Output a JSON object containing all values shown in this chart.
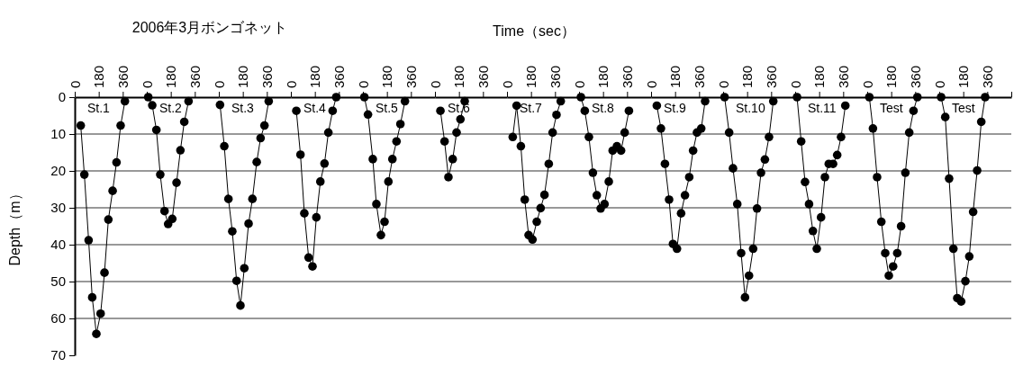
{
  "chart_data": [
    {
      "type": "line",
      "ylabel": "Depth（m）",
      "marker": "circle",
      "grid": "y",
      "xlim": [
        0,
        540
      ],
      "xticks": [
        0,
        180,
        360
      ],
      "ylim": [
        70,
        0
      ],
      "yticks": [
        0,
        10,
        20,
        30,
        40,
        50,
        60,
        70
      ],
      "x": [
        45,
        72,
        104,
        131,
        162,
        194,
        223,
        252,
        284,
        313,
        344,
        376
      ],
      "series": [
        {
          "name": "St.1",
          "color": "#000000",
          "values": [
            7.7,
            21.0,
            38.8,
            54.3,
            64.2,
            58.7,
            47.6,
            33.2,
            25.4,
            17.7,
            7.7,
            1.1
          ]
        }
      ]
    },
    {
      "type": "line",
      "title": "2006年3月ボンゴネット",
      "tick_labels": "x",
      "marker": "circle",
      "grid": "y",
      "xlim": [
        0,
        540
      ],
      "xticks": [
        0,
        180,
        360
      ],
      "ylim": [
        70,
        0
      ],
      "yticks": [
        0,
        10,
        20,
        30,
        40,
        50,
        60,
        70
      ],
      "x": [
        11,
        41,
        72,
        101,
        133,
        160,
        191,
        223,
        252,
        281,
        313
      ],
      "series": [
        {
          "name": "St.2",
          "color": "#000000",
          "values": [
            0,
            2.2,
            8.9,
            21.0,
            30.9,
            34.4,
            33.0,
            23.2,
            14.4,
            6.7,
            1.1
          ]
        }
      ]
    },
    {
      "type": "line",
      "tick_labels": "x",
      "marker": "circle",
      "grid": "y",
      "xlim": [
        0,
        540
      ],
      "xticks": [
        0,
        180,
        360
      ],
      "ylim": [
        70,
        0
      ],
      "yticks": [
        0,
        10,
        20,
        30,
        40,
        50,
        60,
        70
      ],
      "x": [
        9,
        41,
        72,
        101,
        133,
        162,
        191,
        223,
        252,
        284,
        313,
        342,
        374
      ],
      "series": [
        {
          "name": "St.3",
          "color": "#000000",
          "values": [
            2.1,
            13.3,
            27.6,
            36.4,
            49.8,
            56.5,
            46.4,
            34.3,
            27.6,
            17.6,
            11.1,
            7.7,
            1.1
          ]
        }
      ]
    },
    {
      "type": "line",
      "tick_labels": "x",
      "marker": "circle",
      "grid": "y",
      "xlim": [
        0,
        540
      ],
      "xticks": [
        0,
        180,
        360
      ],
      "ylim": [
        70,
        0
      ],
      "yticks": [
        0,
        10,
        20,
        30,
        40,
        50,
        60,
        70
      ],
      "x": [
        41,
        72,
        101,
        133,
        162,
        191,
        221,
        252,
        281,
        313,
        340
      ],
      "series": [
        {
          "name": "St.4",
          "color": "#000000",
          "values": [
            3.7,
            15.6,
            31.5,
            43.5,
            45.9,
            32.6,
            22.9,
            18.0,
            9.6,
            3.7,
            0
          ]
        }
      ]
    },
    {
      "type": "line",
      "tick_labels": "x",
      "marker": "circle",
      "grid": "y",
      "xlim": [
        0,
        540
      ],
      "xticks": [
        0,
        180,
        360
      ],
      "ylim": [
        70,
        0
      ],
      "yticks": [
        0,
        10,
        20,
        30,
        40,
        50,
        60,
        70
      ],
      "x": [
        11,
        38,
        74,
        101,
        135,
        162,
        191,
        221,
        252,
        281,
        315
      ],
      "series": [
        {
          "name": "St.5",
          "color": "#000000",
          "values": [
            0,
            4.7,
            16.8,
            29.0,
            37.4,
            33.8,
            22.9,
            16.8,
            12.0,
            7.3,
            1.1
          ]
        }
      ]
    },
    {
      "type": "line",
      "tick_labels": "x",
      "marker": "circle",
      "grid": "y",
      "xlim": [
        0,
        540
      ],
      "xticks": [
        0,
        180,
        360
      ],
      "ylim": [
        70,
        0
      ],
      "yticks": [
        0,
        10,
        20,
        30,
        40,
        50,
        60,
        70
      ],
      "x": [
        41,
        72,
        101,
        133,
        162,
        191,
        223
      ],
      "series": [
        {
          "name": "St.6",
          "color": "#000000",
          "values": [
            3.7,
            12.0,
            21.7,
            16.8,
            9.6,
            6.0,
            1.1
          ]
        }
      ]
    },
    {
      "type": "line",
      "xlabel": "Time（sec）",
      "tick_labels": "x",
      "marker": "circle",
      "grid": "y",
      "xlim": [
        0,
        540
      ],
      "xticks": [
        0,
        180,
        360
      ],
      "ylim": [
        70,
        0
      ],
      "yticks": [
        0,
        10,
        20,
        30,
        40,
        50,
        60,
        70
      ],
      "x": [
        43,
        72,
        104,
        133,
        162,
        191,
        223,
        252,
        281,
        313,
        342,
        371,
        403
      ],
      "series": [
        {
          "name": "St.7",
          "color": "#000000",
          "values": [
            10.8,
            2.3,
            13.3,
            27.8,
            37.4,
            38.6,
            33.8,
            30.1,
            26.5,
            18.1,
            9.6,
            4.8,
            1.1
          ]
        }
      ]
    },
    {
      "type": "line",
      "tick_labels": "x",
      "marker": "circle",
      "grid": "y",
      "xlim": [
        0,
        540
      ],
      "xticks": [
        0,
        180,
        360
      ],
      "ylim": [
        70,
        0
      ],
      "yticks": [
        0,
        10,
        20,
        30,
        40,
        50,
        60,
        70
      ],
      "x": [
        14,
        43,
        74,
        104,
        133,
        162,
        191,
        223,
        252,
        284,
        315,
        342,
        374
      ],
      "series": [
        {
          "name": "St.8",
          "color": "#000000",
          "values": [
            0,
            3.7,
            10.8,
            20.5,
            26.6,
            30.2,
            29.0,
            22.9,
            14.5,
            13.3,
            14.5,
            9.6,
            3.7
          ]
        }
      ]
    },
    {
      "type": "line",
      "tick_labels": "x",
      "marker": "circle",
      "grid": "y",
      "xlim": [
        0,
        540
      ],
      "xticks": [
        0,
        180,
        360
      ],
      "ylim": [
        70,
        0
      ],
      "yticks": [
        0,
        10,
        20,
        30,
        40,
        50,
        60,
        70
      ],
      "x": [
        43,
        74,
        104,
        135,
        164,
        194,
        225,
        254,
        286,
        315,
        344,
        376,
        405
      ],
      "series": [
        {
          "name": "St.9",
          "color": "#000000",
          "values": [
            2.3,
            8.5,
            18.1,
            27.8,
            39.8,
            41.1,
            31.5,
            26.6,
            21.7,
            14.5,
            9.6,
            8.5,
            1.1
          ]
        }
      ]
    },
    {
      "type": "line",
      "tick_labels": "x",
      "marker": "circle",
      "grid": "y",
      "xlim": [
        0,
        540
      ],
      "xticks": [
        0,
        180,
        360
      ],
      "ylim": [
        70,
        0
      ],
      "yticks": [
        0,
        10,
        20,
        30,
        40,
        50,
        60,
        70
      ],
      "x": [
        11,
        45,
        74,
        106,
        135,
        164,
        194,
        225,
        254,
        284,
        313,
        344,
        376
      ],
      "series": [
        {
          "name": "St.10",
          "color": "#000000",
          "values": [
            0,
            9.6,
            19.3,
            29.0,
            42.3,
            54.3,
            48.4,
            41.1,
            30.2,
            20.5,
            16.9,
            10.8,
            1.1
          ]
        }
      ]
    },
    {
      "type": "line",
      "tick_labels": "x",
      "marker": "circle",
      "grid": "y",
      "xlim": [
        0,
        540
      ],
      "xticks": [
        0,
        180,
        360
      ],
      "ylim": [
        70,
        0
      ],
      "yticks": [
        0,
        10,
        20,
        30,
        40,
        50,
        60,
        70
      ],
      "x": [
        14,
        45,
        74,
        104,
        133,
        162,
        194,
        223,
        252,
        284,
        315,
        344,
        376
      ],
      "series": [
        {
          "name": "St.11",
          "color": "#000000",
          "values": [
            0,
            12.0,
            23.0,
            29.0,
            36.3,
            41.1,
            32.6,
            21.7,
            18.1,
            18.1,
            15.7,
            10.8,
            2.3
          ]
        }
      ]
    },
    {
      "type": "line",
      "tick_labels": "x",
      "marker": "circle",
      "grid": "y",
      "xlim": [
        0,
        540
      ],
      "xticks": [
        0,
        180,
        360
      ],
      "ylim": [
        70,
        0
      ],
      "yticks": [
        0,
        10,
        20,
        30,
        40,
        50,
        60,
        70
      ],
      "x": [
        16,
        43,
        74,
        106,
        135,
        162,
        194,
        225,
        254,
        286,
        315,
        347,
        376
      ],
      "series": [
        {
          "name": "Test",
          "color": "#000000",
          "values": [
            0,
            8.5,
            21.7,
            33.8,
            42.3,
            48.4,
            45.9,
            42.3,
            35.0,
            20.5,
            9.6,
            3.7,
            0
          ]
        }
      ]
    },
    {
      "type": "line",
      "tick_labels": "x",
      "marker": "circle",
      "grid": "y",
      "xlim": [
        0,
        540
      ],
      "xticks": [
        0,
        180,
        360,
        {
          "value": 540,
          "label": null
        }
      ],
      "ylim": [
        70,
        0
      ],
      "yticks": [
        0,
        10,
        20,
        30,
        40,
        50,
        60,
        70
      ],
      "x": [
        14,
        45,
        74,
        106,
        135,
        164,
        196,
        225,
        254,
        284,
        315,
        344
      ],
      "series": [
        {
          "name": "Test",
          "color": "#000000",
          "values": [
            0,
            5.4,
            22.1,
            41.1,
            54.5,
            55.4,
            49.9,
            43.2,
            31.1,
            19.9,
            6.7,
            0
          ]
        }
      ]
    }
  ]
}
